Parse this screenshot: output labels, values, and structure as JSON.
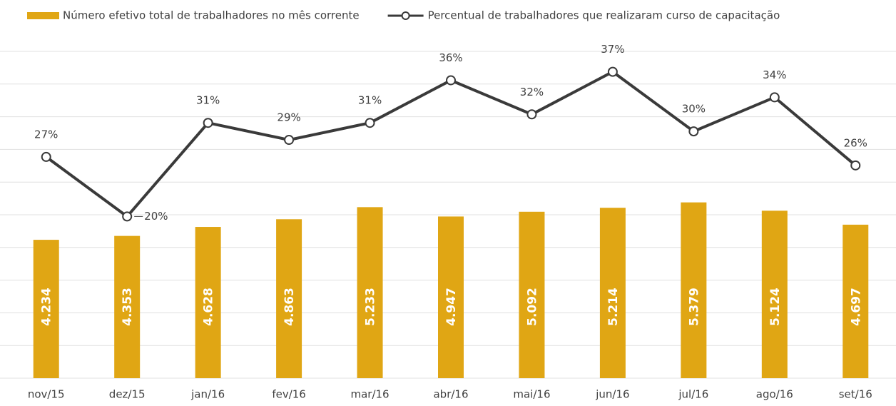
{
  "chart_data": {
    "type": "bar-line",
    "categories": [
      "nov/15",
      "dez/15",
      "jan/16",
      "fev/16",
      "mar/16",
      "abr/16",
      "mai/16",
      "jun/16",
      "jul/16",
      "ago/16",
      "set/16"
    ],
    "series": [
      {
        "name": "Número efetivo total de trabalhadores no mês corrente",
        "type": "bar",
        "color": "#e0a614",
        "values": [
          4234,
          4353,
          4628,
          4863,
          5233,
          4947,
          5092,
          5214,
          5379,
          5124,
          4697
        ],
        "value_labels": [
          "4.234",
          "4.353",
          "4.628",
          "4.863",
          "5.233",
          "4.947",
          "5.092",
          "5.214",
          "5.379",
          "5.124",
          "4.697"
        ]
      },
      {
        "name": "Percentual de trabalhadores que realizaram curso de capacitação",
        "type": "line",
        "color": "#3a3a3a",
        "axis": "y2",
        "values": [
          27,
          20,
          31,
          29,
          31,
          36,
          32,
          37,
          30,
          34,
          26
        ],
        "value_labels": [
          "27%",
          "20%",
          "31%",
          "29%",
          "31%",
          "36%",
          "32%",
          "37%",
          "30%",
          "34%",
          "26%"
        ]
      }
    ],
    "ylim": [
      0,
      10000
    ],
    "yticks": [
      0,
      1000,
      2000,
      3000,
      4000,
      5000,
      6000,
      7000,
      8000,
      9000,
      10000
    ],
    "y2lim": [
      1,
      39.4
    ],
    "grid": true,
    "legend": "top"
  }
}
